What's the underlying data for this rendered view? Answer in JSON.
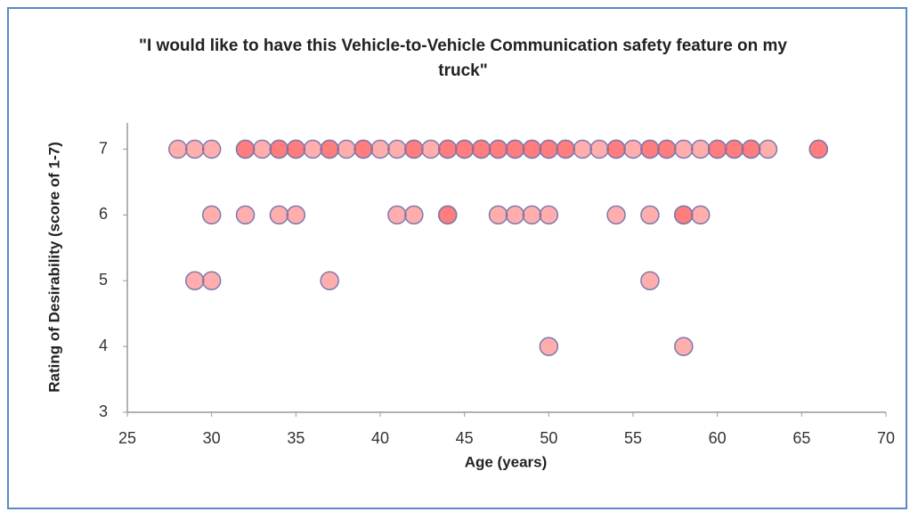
{
  "chart_data": {
    "type": "scatter",
    "title": "\"I would like to have this Vehicle-to-Vehicle Communication safety feature on my truck\"",
    "x_label": "Age (years)",
    "y_label": "Rating of Desirability (score of 1-7)",
    "color": "#ff3c3c",
    "x": [
      28,
      29,
      30,
      32,
      32,
      33,
      34,
      34,
      35,
      35,
      36,
      37,
      37,
      38,
      39,
      39,
      40,
      41,
      42,
      42,
      43,
      44,
      44,
      45,
      45,
      46,
      46,
      47,
      47,
      48,
      48,
      49,
      49,
      50,
      50,
      51,
      51,
      52,
      53,
      54,
      54,
      55,
      56,
      56,
      57,
      57,
      58,
      59,
      60,
      60,
      61,
      61,
      62,
      62,
      63,
      66,
      66,
      30,
      32,
      34,
      35,
      41,
      42,
      44,
      44,
      47,
      48,
      49,
      50,
      54,
      56,
      58,
      58,
      59,
      29,
      30,
      37,
      56,
      50,
      58
    ],
    "values": [
      7,
      7,
      7,
      7,
      7,
      7,
      7,
      7,
      7,
      7,
      7,
      7,
      7,
      7,
      7,
      7,
      7,
      7,
      7,
      7,
      7,
      7,
      7,
      7,
      7,
      7,
      7,
      7,
      7,
      7,
      7,
      7,
      7,
      7,
      7,
      7,
      7,
      7,
      7,
      7,
      7,
      7,
      7,
      7,
      7,
      7,
      7,
      7,
      7,
      7,
      7,
      7,
      7,
      7,
      7,
      7,
      7,
      6,
      6,
      6,
      6,
      6,
      6,
      6,
      6,
      6,
      6,
      6,
      6,
      6,
      6,
      6,
      6,
      6,
      5,
      5,
      5,
      5,
      4,
      4
    ],
    "xlim": [
      25,
      70
    ],
    "xticks": [
      25,
      30,
      35,
      40,
      45,
      50,
      55,
      60,
      65,
      70
    ],
    "ylim": [
      3,
      7.4
    ],
    "yticks": [
      3,
      4,
      5,
      6,
      7
    ]
  }
}
